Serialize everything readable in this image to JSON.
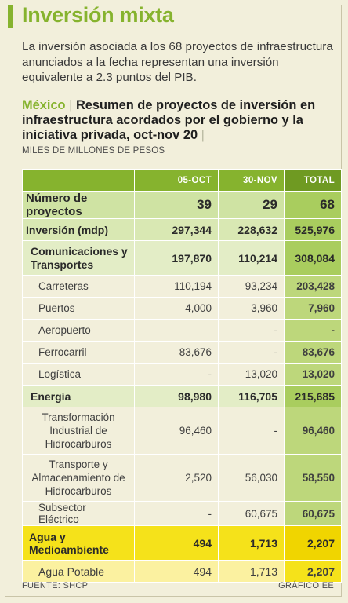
{
  "headline": "Inversión mixta",
  "intro": "La inversión asociada a los 68 proyectos de infraestructura anunciados a la fecha representan una inversión equivalente a 2.3 puntos del PIB.",
  "chart_title": {
    "country": "México",
    "separator": "|",
    "text": "Resumen de proyectos de inversión en infraestructura acordados por el gobierno y la iniciativa privada, oct-nov 20",
    "trailing_separator": "|"
  },
  "units": "MILES DE MILLONES DE PESOS",
  "table": {
    "columns": [
      "05-OCT",
      "30-NOV",
      "TOTAL"
    ],
    "rows": [
      {
        "label": "Número de proyectos",
        "oct": "39",
        "nov": "29",
        "total": "68"
      },
      {
        "label": "Inversión (mdp)",
        "oct": "297,344",
        "nov": "228,632",
        "total": "525,976"
      },
      {
        "label": "Comunicaciones y Transportes",
        "oct": "197,870",
        "nov": "110,214",
        "total": "308,084"
      },
      {
        "label": "Carreteras",
        "oct": "110,194",
        "nov": "93,234",
        "total": "203,428"
      },
      {
        "label": "Puertos",
        "oct": "4,000",
        "nov": "3,960",
        "total": "7,960"
      },
      {
        "label": "Aeropuerto",
        "oct": "",
        "nov": "-",
        "total": "-"
      },
      {
        "label": "Ferrocarril",
        "oct": "83,676",
        "nov": "-",
        "total": "83,676"
      },
      {
        "label": "Logística",
        "oct": "-",
        "nov": "13,020",
        "total": "13,020"
      },
      {
        "label": "Energía",
        "oct": "98,980",
        "nov": "116,705",
        "total": "215,685"
      },
      {
        "label": "Transformación Industrial de Hidrocarburos",
        "oct": "96,460",
        "nov": "-",
        "total": "96,460"
      },
      {
        "label": "Transporte y Almacenamiento de Hidrocarburos",
        "oct": "2,520",
        "nov": "56,030",
        "total": "58,550"
      },
      {
        "label": "Subsector Eléctrico",
        "oct": "-",
        "nov": "60,675",
        "total": "60,675"
      },
      {
        "label": "Agua y Medioambiente",
        "oct": "494",
        "nov": "1,713",
        "total": "2,207"
      },
      {
        "label": "Agua Potable",
        "oct": "494",
        "nov": "1,713",
        "total": "2,207"
      }
    ]
  },
  "footer": {
    "source": "FUENTE: SHCP",
    "credit": "GRÁFICO EE"
  },
  "colors": {
    "green": "#86b32e",
    "yellow": "#f5e21a",
    "background": "#f2efdb"
  }
}
